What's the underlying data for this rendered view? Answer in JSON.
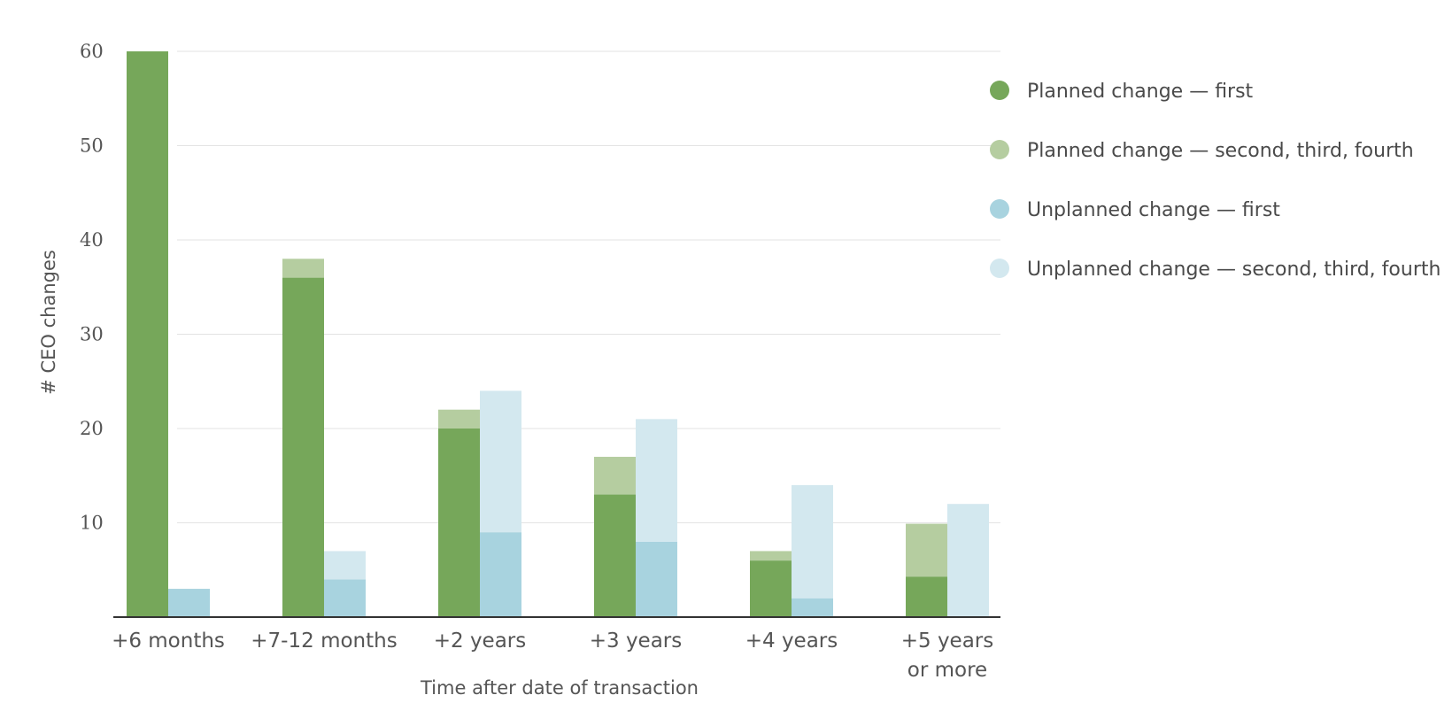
{
  "chart_data": {
    "type": "bar",
    "stacked": true,
    "title": "",
    "xlabel": "Time after date of transaction",
    "ylabel": "# CEO changes",
    "ylim": [
      0,
      60
    ],
    "yticks": [
      "10",
      "20",
      "30",
      "40",
      "50",
      "60"
    ],
    "grid": true,
    "legend_position": "right",
    "categories": [
      [
        "+6 months"
      ],
      [
        "+7-12 months"
      ],
      [
        "+2 years"
      ],
      [
        "+3 years"
      ],
      [
        "+4 years"
      ],
      [
        "+5 years",
        "or more"
      ]
    ],
    "groups": [
      {
        "name": "Planned",
        "series": [
          {
            "name": "Planned change — first",
            "color": "#76a75a",
            "values": [
              60,
              36,
              20,
              13,
              6,
              4.3
            ]
          },
          {
            "name": "Planned change — second, third, fourth",
            "color": "#b5cda0",
            "values": [
              0,
              2,
              2,
              4,
              1,
              5.6
            ]
          }
        ]
      },
      {
        "name": "Unplanned",
        "series": [
          {
            "name": "Unplanned change — first",
            "color": "#a8d3df",
            "values": [
              3,
              4,
              9,
              8,
              2,
              0
            ]
          },
          {
            "name": "Unplanned change — second, third, fourth",
            "color": "#d3e8ef",
            "values": [
              0,
              3,
              15,
              13,
              12,
              12
            ]
          }
        ]
      }
    ]
  },
  "legend": [
    {
      "label": "Planned change — first",
      "color": "#76a75a"
    },
    {
      "label": "Planned change — second, third, fourth",
      "color": "#b5cda0"
    },
    {
      "label": "Unplanned change — first",
      "color": "#a8d3df"
    },
    {
      "label": "Unplanned change — second, third, fourth",
      "color": "#d3e8ef"
    }
  ]
}
